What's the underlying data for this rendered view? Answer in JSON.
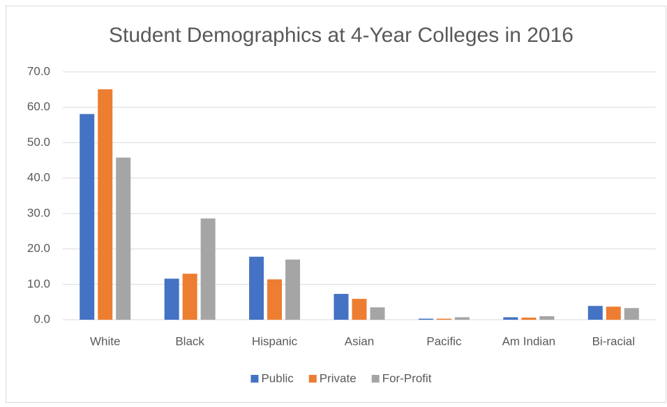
{
  "chart_data": {
    "type": "bar",
    "title": "Student Demographics at 4-Year Colleges in 2016",
    "categories": [
      "White",
      "Black",
      "Hispanic",
      "Asian",
      "Pacific",
      "Am Indian",
      "Bi-racial"
    ],
    "series": [
      {
        "name": "Public",
        "color": "#4472c4",
        "values": [
          58.1,
          11.6,
          17.8,
          7.3,
          0.3,
          0.7,
          3.9
        ]
      },
      {
        "name": "Private",
        "color": "#ed7d31",
        "values": [
          65.1,
          13.0,
          11.4,
          5.9,
          0.3,
          0.6,
          3.7
        ]
      },
      {
        "name": "For-Profit",
        "color": "#a5a5a5",
        "values": [
          45.8,
          28.6,
          17.0,
          3.5,
          0.7,
          1.0,
          3.3
        ]
      }
    ],
    "ylim": [
      0,
      70
    ],
    "yticks": [
      {
        "value": 0,
        "label": "0.0"
      },
      {
        "value": 10,
        "label": "10.0"
      },
      {
        "value": 20,
        "label": "20.0"
      },
      {
        "value": 30,
        "label": "30.0"
      },
      {
        "value": 40,
        "label": "40.0"
      },
      {
        "value": 50,
        "label": "50.0"
      },
      {
        "value": 60,
        "label": "60.0"
      },
      {
        "value": 70,
        "label": "70.0"
      }
    ],
    "grid": true,
    "legend": "bottom"
  }
}
